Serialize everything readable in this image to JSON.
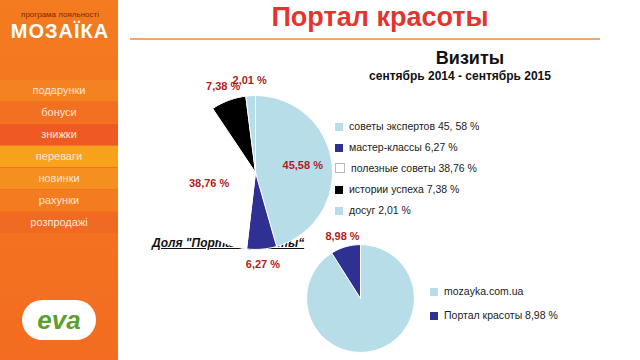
{
  "page": {
    "title": "Портал красоты",
    "sidebar": {
      "logo_caption": "програма лояльності",
      "logo": "МОЗАЇКА",
      "menu": [
        "подарунки",
        "бонуси",
        "знижки",
        "переваги",
        "новинки",
        "рахунки",
        "розпродажі"
      ],
      "brand": "eva"
    }
  },
  "chart_data": [
    {
      "type": "pie",
      "title": "Визиты",
      "subtitle": "сентябрь 2014 - сентябрь 2015",
      "categories": [
        "советы экспертов 45, 58 %",
        "мастер-классы 6,27 %",
        "полезные советы 38,76 %",
        "истории успеха  7,38 %",
        "досуг  2,01 %"
      ],
      "values": [
        45.58,
        6.27,
        38.76,
        7.38,
        2.01
      ],
      "value_labels": [
        "45,58 %",
        "6,27 %",
        "38,76 %",
        "7,38 %",
        "2,01 %"
      ],
      "colors": [
        "#b7dde8",
        "#2e3192",
        "#ffffff",
        "#000000",
        "#b7dde8"
      ],
      "data_labels": true,
      "legend": "right"
    },
    {
      "type": "pie",
      "title": "Доля \"Портал красоты“",
      "categories": [
        "mozayka.com.ua",
        "Портал красоты 8,98 %"
      ],
      "values": [
        91.02,
        8.98
      ],
      "value_labels": [
        null,
        "8,98 %"
      ],
      "colors": [
        "#b7dde8",
        "#2e3192"
      ],
      "data_labels": true,
      "legend": "right"
    }
  ]
}
